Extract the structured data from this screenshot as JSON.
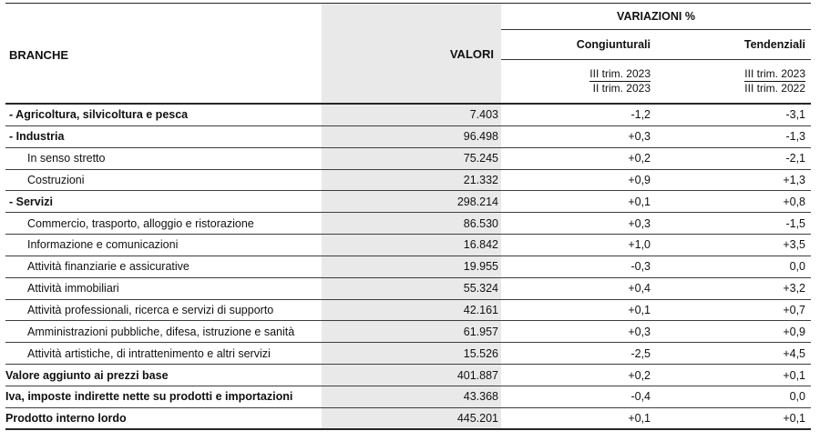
{
  "table": {
    "header": {
      "branche": "BRANCHE",
      "valori": "VALORI",
      "variazioni": "VARIAZIONI %",
      "congiunturali": "Congiunturali",
      "tendenziali": "Tendenziali",
      "cong_num": "III trim. 2023",
      "cong_den": "II trim. 2023",
      "tend_num": "III trim. 2023",
      "tend_den": "III trim. 2022"
    },
    "rows": [
      {
        "label": "- Agricoltura, silvicoltura e pesca",
        "style": "sector",
        "valori": "7.403",
        "cong": "-1,2",
        "tend": "-3,1"
      },
      {
        "label": "- Industria",
        "style": "sector",
        "valori": "96.498",
        "cong": "+0,3",
        "tend": "-1,3"
      },
      {
        "label": "In senso stretto",
        "style": "indent",
        "valori": "75.245",
        "cong": "+0,2",
        "tend": "-2,1"
      },
      {
        "label": "Costruzioni",
        "style": "indent",
        "valori": "21.332",
        "cong": "+0,9",
        "tend": "+1,3"
      },
      {
        "label": "- Servizi",
        "style": "sector",
        "valori": "298.214",
        "cong": "+0,1",
        "tend": "+0,8"
      },
      {
        "label": "Commercio, trasporto, alloggio e ristorazione",
        "style": "indent",
        "valori": "86.530",
        "cong": "+0,3",
        "tend": "-1,5"
      },
      {
        "label": "Informazione e comunicazioni",
        "style": "indent",
        "valori": "16.842",
        "cong": "+1,0",
        "tend": "+3,5"
      },
      {
        "label": "Attività finanziarie e assicurative",
        "style": "indent",
        "valori": "19.955",
        "cong": "-0,3",
        "tend": "0,0"
      },
      {
        "label": "Attività immobiliari",
        "style": "indent",
        "valori": "55.324",
        "cong": "+0,4",
        "tend": "+3,2"
      },
      {
        "label": "Attività professionali, ricerca e servizi di supporto",
        "style": "indent",
        "valori": "42.161",
        "cong": "+0,1",
        "tend": "+0,7"
      },
      {
        "label": "Amministrazioni pubbliche, difesa, istruzione e sanità",
        "style": "indent",
        "valori": "61.957",
        "cong": "+0,3",
        "tend": "+0,9"
      },
      {
        "label": "Attività artistiche, di intrattenimento e altri servizi",
        "style": "indent",
        "valori": "15.526",
        "cong": "-2,5",
        "tend": "+4,5"
      },
      {
        "label": "Valore aggiunto ai prezzi base",
        "style": "total",
        "valori": "401.887",
        "cong": "+0,2",
        "tend": "+0,1"
      },
      {
        "label": "Iva, imposte indirette nette su prodotti e importazioni",
        "style": "total",
        "valori": "43.368",
        "cong": "-0,4",
        "tend": "0,0"
      },
      {
        "label": "Prodotto interno lordo",
        "style": "total",
        "valori": "445.201",
        "cong": "+0,1",
        "tend": "+0,1"
      }
    ],
    "colors": {
      "stripe": "#e9e9e9",
      "line_thick": "#262626",
      "line_thin": "#3d3d3d"
    }
  }
}
